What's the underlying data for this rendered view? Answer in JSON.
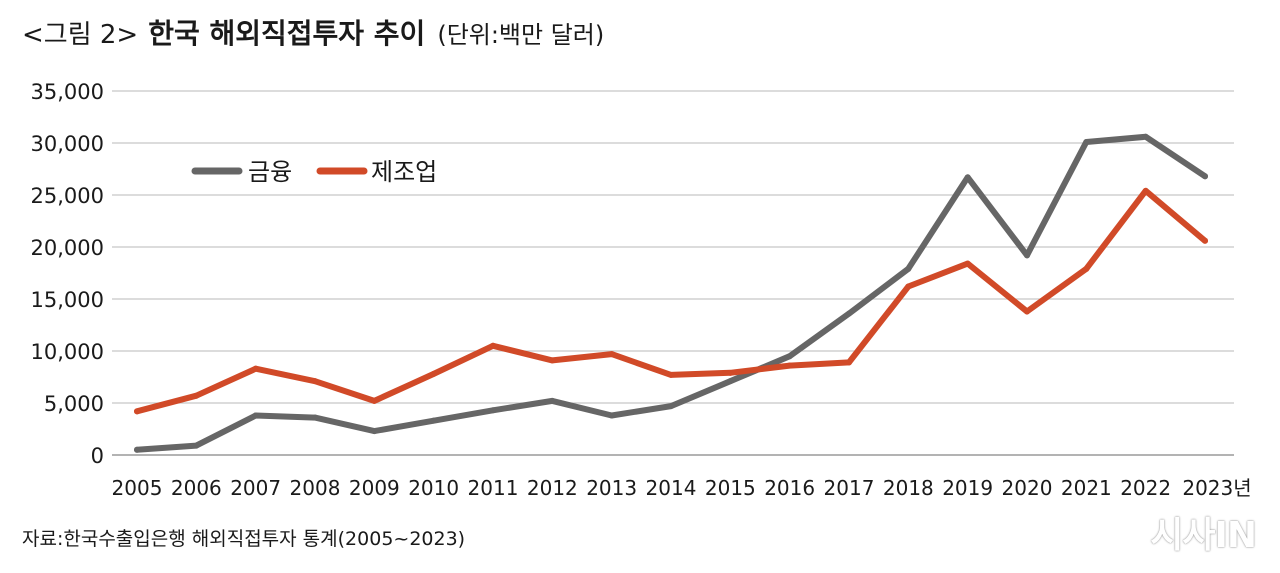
{
  "header": {
    "prefix": "<그림 2>",
    "title": "한국 해외직접투자 추이",
    "unit": "(단위:백만 달러)"
  },
  "source": "자료:한국수출입은행 해외직접투자 통계(2005~2023)",
  "watermark": "시사IN",
  "chart_data": {
    "type": "line",
    "title": "한국 해외직접투자 추이",
    "unit_label": "(단위:백만 달러)",
    "x": [
      "2005",
      "2006",
      "2007",
      "2008",
      "2009",
      "2010",
      "2011",
      "2012",
      "2013",
      "2014",
      "2015",
      "2016",
      "2017",
      "2018",
      "2019",
      "2020",
      "2021",
      "2022",
      "2023년"
    ],
    "ylim": [
      0,
      35000
    ],
    "yticks": [
      0,
      5000,
      10000,
      15000,
      20000,
      25000,
      30000,
      35000
    ],
    "ytick_labels": [
      "0",
      "5,000",
      "10,000",
      "15,000",
      "20,000",
      "25,000",
      "30,000",
      "35,000"
    ],
    "grid": "horizontal",
    "legend": "top-left",
    "series": [
      {
        "name": "금융",
        "color": "#666666",
        "values": [
          500,
          900,
          3800,
          3600,
          2300,
          3300,
          4300,
          5200,
          3800,
          4700,
          7100,
          9500,
          13600,
          17900,
          26700,
          19200,
          30100,
          30600,
          26800
        ]
      },
      {
        "name": "제조업",
        "color": "#d14a28",
        "values": [
          4200,
          5700,
          8300,
          7100,
          5200,
          7800,
          10500,
          9100,
          9700,
          7700,
          7900,
          8600,
          8900,
          16200,
          18400,
          13800,
          17900,
          25400,
          20600
        ]
      }
    ]
  }
}
